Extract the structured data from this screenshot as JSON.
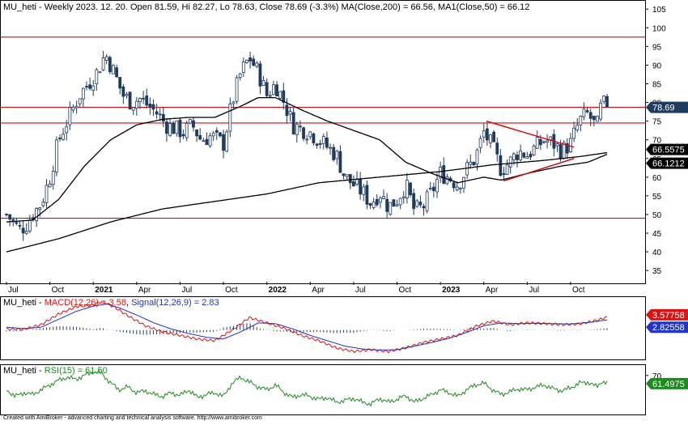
{
  "chart_data": [
    {
      "type": "candlestick",
      "title": "MU_heti - Weekly 2023. 12. 20. Open 81.59, Hi 82.27, Lo 78.63, Close 78.69 (-3.3%) MA(Close,200) = 66.56, MA1(Close,50) = 66.12",
      "title_parts": {
        "symbol": "MU_heti",
        "info": " - Weekly 2023. 12. 20. Open 81.59, Hi 82.27, Lo 78.63, Close 78.69 (-3.3%) ",
        "ma200_text": "MA(Close,200) = 66.56",
        "ma50_text": "MA1(Close,50) = 66.12"
      },
      "ylim": [
        32,
        107
      ],
      "y_ticks": [
        35,
        40,
        45,
        50,
        55,
        60,
        65,
        70,
        75,
        80,
        85,
        90,
        95,
        100,
        105
      ],
      "x_ticks": [
        {
          "label": "Jul",
          "t": 0.0,
          "bold": false
        },
        {
          "label": "Oct",
          "t": 0.25,
          "bold": false
        },
        {
          "label": "2021",
          "t": 0.5,
          "bold": true
        },
        {
          "label": "Apr",
          "t": 0.75,
          "bold": false
        },
        {
          "label": "Jul",
          "t": 1.0,
          "bold": false
        },
        {
          "label": "Oct",
          "t": 1.25,
          "bold": false
        },
        {
          "label": "2022",
          "t": 1.5,
          "bold": true
        },
        {
          "label": "Apr",
          "t": 1.75,
          "bold": false
        },
        {
          "label": "Jul",
          "t": 2.0,
          "bold": false
        },
        {
          "label": "Oct",
          "t": 2.25,
          "bold": false
        },
        {
          "label": "2023",
          "t": 2.5,
          "bold": true
        },
        {
          "label": "Apr",
          "t": 2.75,
          "bold": false
        },
        {
          "label": "Jul",
          "t": 3.0,
          "bold": false
        },
        {
          "label": "Oct",
          "t": 3.25,
          "bold": false
        }
      ],
      "last_t": 3.46,
      "horizontal_levels": [
        97.5,
        78.7,
        74.5,
        49.0
      ],
      "triangle_lines": [
        {
          "from": [
            2.765,
            75.0
          ],
          "to": [
            3.27,
            68.0
          ]
        },
        {
          "from": [
            2.865,
            59.0
          ],
          "to": [
            3.27,
            65.0
          ]
        }
      ],
      "price_anchors": [
        [
          0.0,
          50
        ],
        [
          0.04,
          48
        ],
        [
          0.07,
          46
        ],
        [
          0.11,
          47
        ],
        [
          0.15,
          50
        ],
        [
          0.2,
          53
        ],
        [
          0.25,
          60
        ],
        [
          0.3,
          70
        ],
        [
          0.36,
          76
        ],
        [
          0.42,
          82
        ],
        [
          0.47,
          85
        ],
        [
          0.52,
          88
        ],
        [
          0.57,
          93
        ],
        [
          0.62,
          88
        ],
        [
          0.67,
          82
        ],
        [
          0.72,
          80
        ],
        [
          0.77,
          81
        ],
        [
          0.82,
          79
        ],
        [
          0.87,
          77
        ],
        [
          0.92,
          74
        ],
        [
          0.97,
          73
        ],
        [
          1.02,
          72
        ],
        [
          1.07,
          74
        ],
        [
          1.12,
          70
        ],
        [
          1.18,
          71
        ],
        [
          1.25,
          69
        ],
        [
          1.3,
          80
        ],
        [
          1.35,
          88
        ],
        [
          1.4,
          92
        ],
        [
          1.45,
          88
        ],
        [
          1.5,
          82
        ],
        [
          1.55,
          85
        ],
        [
          1.6,
          80
        ],
        [
          1.65,
          74
        ],
        [
          1.7,
          73
        ],
        [
          1.75,
          72
        ],
        [
          1.8,
          70
        ],
        [
          1.85,
          68
        ],
        [
          1.9,
          66
        ],
        [
          1.95,
          60
        ],
        [
          2.0,
          58
        ],
        [
          2.05,
          56
        ],
        [
          2.1,
          53
        ],
        [
          2.15,
          56
        ],
        [
          2.2,
          52
        ],
        [
          2.25,
          54
        ],
        [
          2.3,
          58
        ],
        [
          2.35,
          51
        ],
        [
          2.4,
          52
        ],
        [
          2.45,
          56
        ],
        [
          2.5,
          61
        ],
        [
          2.55,
          60
        ],
        [
          2.6,
          58
        ],
        [
          2.65,
          62
        ],
        [
          2.7,
          65
        ],
        [
          2.75,
          72
        ],
        [
          2.8,
          68
        ],
        [
          2.85,
          62
        ],
        [
          2.9,
          64
        ],
        [
          2.95,
          67
        ],
        [
          3.0,
          66
        ],
        [
          3.05,
          68
        ],
        [
          3.1,
          70
        ],
        [
          3.15,
          69
        ],
        [
          3.2,
          67
        ],
        [
          3.25,
          69
        ],
        [
          3.3,
          75
        ],
        [
          3.35,
          77
        ],
        [
          3.4,
          73
        ],
        [
          3.43,
          80
        ],
        [
          3.46,
          78.69
        ]
      ],
      "series": [
        {
          "name": "MA(Close,200)",
          "value": 66.5575,
          "label": "66.5575",
          "anchors": [
            [
              0.0,
              40
            ],
            [
              0.3,
              43.5
            ],
            [
              0.6,
              48
            ],
            [
              0.9,
              51.5
            ],
            [
              1.2,
              53.5
            ],
            [
              1.5,
              55.5
            ],
            [
              1.8,
              58.5
            ],
            [
              2.1,
              59.8
            ],
            [
              2.5,
              61.5
            ],
            [
              2.8,
              63.3
            ],
            [
              3.1,
              64.5
            ],
            [
              3.3,
              65.5
            ],
            [
              3.46,
              66.56
            ]
          ]
        },
        {
          "name": "MA1(Close,50)",
          "value": 66.1212,
          "label": "66.1212",
          "anchors": [
            [
              0.0,
              48
            ],
            [
              0.15,
              48.5
            ],
            [
              0.3,
              54
            ],
            [
              0.45,
              63
            ],
            [
              0.6,
              70
            ],
            [
              0.75,
              74
            ],
            [
              0.9,
              75.5
            ],
            [
              1.05,
              76
            ],
            [
              1.2,
              76
            ],
            [
              1.35,
              79
            ],
            [
              1.45,
              81.3
            ],
            [
              1.55,
              81.3
            ],
            [
              1.7,
              78
            ],
            [
              1.85,
              75
            ],
            [
              2.0,
              72.5
            ],
            [
              2.15,
              70
            ],
            [
              2.3,
              64
            ],
            [
              2.45,
              61
            ],
            [
              2.6,
              58.5
            ],
            [
              2.75,
              60
            ],
            [
              2.85,
              59.2
            ],
            [
              3.0,
              61
            ],
            [
              3.2,
              63
            ],
            [
              3.35,
              64
            ],
            [
              3.46,
              66.12
            ]
          ]
        }
      ],
      "last_price": {
        "value": 78.69,
        "label": "78.69"
      }
    },
    {
      "type": "line",
      "title_parts": {
        "symbol": "MU_heti - ",
        "macd_text": "MACD(12,26) = 3.58",
        "sep": ", ",
        "signal_text": "Signal(12,26,9) = 2.83"
      },
      "ylim": [
        -8,
        9
      ],
      "series": [
        {
          "name": "MACD(12,26)",
          "value": 3.57758,
          "label": "3.57758",
          "anchors": [
            [
              0.0,
              0.3
            ],
            [
              0.1,
              0.2
            ],
            [
              0.2,
              1.5
            ],
            [
              0.3,
              4.5
            ],
            [
              0.4,
              6.5
            ],
            [
              0.5,
              7.0
            ],
            [
              0.55,
              8.0
            ],
            [
              0.62,
              6.5
            ],
            [
              0.7,
              4.0
            ],
            [
              0.8,
              1.2
            ],
            [
              0.9,
              -0.5
            ],
            [
              1.0,
              -1.5
            ],
            [
              1.1,
              -2.5
            ],
            [
              1.2,
              -3.0
            ],
            [
              1.3,
              0.0
            ],
            [
              1.4,
              3.5
            ],
            [
              1.5,
              2.0
            ],
            [
              1.6,
              0.5
            ],
            [
              1.7,
              -1.5
            ],
            [
              1.8,
              -3.0
            ],
            [
              1.9,
              -5.0
            ],
            [
              2.0,
              -6.0
            ],
            [
              2.1,
              -5.5
            ],
            [
              2.2,
              -6.0
            ],
            [
              2.3,
              -5.0
            ],
            [
              2.4,
              -3.5
            ],
            [
              2.5,
              -2.5
            ],
            [
              2.6,
              -1.5
            ],
            [
              2.7,
              1.0
            ],
            [
              2.8,
              2.5
            ],
            [
              2.9,
              1.5
            ],
            [
              3.0,
              2.0
            ],
            [
              3.1,
              1.8
            ],
            [
              3.2,
              1.5
            ],
            [
              3.3,
              1.7
            ],
            [
              3.4,
              2.7
            ],
            [
              3.46,
              3.58
            ]
          ]
        },
        {
          "name": "Signal(12,26,9)",
          "value": 2.82558,
          "label": "2.82558",
          "anchors": [
            [
              0.0,
              0.8
            ],
            [
              0.1,
              0.4
            ],
            [
              0.2,
              0.8
            ],
            [
              0.3,
              3.0
            ],
            [
              0.4,
              5.2
            ],
            [
              0.5,
              6.7
            ],
            [
              0.58,
              7.3
            ],
            [
              0.65,
              6.2
            ],
            [
              0.75,
              4.2
            ],
            [
              0.85,
              2.0
            ],
            [
              0.95,
              0.3
            ],
            [
              1.05,
              -1.0
            ],
            [
              1.15,
              -2.0
            ],
            [
              1.25,
              -2.5
            ],
            [
              1.35,
              -0.5
            ],
            [
              1.45,
              2.0
            ],
            [
              1.55,
              1.8
            ],
            [
              1.65,
              0.3
            ],
            [
              1.75,
              -1.5
            ],
            [
              1.85,
              -3.0
            ],
            [
              1.95,
              -4.5
            ],
            [
              2.05,
              -5.3
            ],
            [
              2.15,
              -5.6
            ],
            [
              2.25,
              -5.5
            ],
            [
              2.35,
              -4.5
            ],
            [
              2.45,
              -3.5
            ],
            [
              2.55,
              -2.3
            ],
            [
              2.65,
              -0.7
            ],
            [
              2.75,
              1.2
            ],
            [
              2.85,
              2.0
            ],
            [
              2.95,
              1.8
            ],
            [
              3.05,
              1.9
            ],
            [
              3.15,
              1.8
            ],
            [
              3.25,
              1.7
            ],
            [
              3.35,
              2.1
            ],
            [
              3.46,
              2.83
            ]
          ]
        }
      ]
    },
    {
      "type": "line",
      "title_parts": {
        "symbol": "MU_heti - ",
        "rsi_text": "RSI(15) = 61.50"
      },
      "ylim": [
        30,
        80
      ],
      "series": [
        {
          "name": "RSI(15)",
          "value": 61.4975,
          "label": "61.4975",
          "anchors": [
            [
              0.0,
              55
            ],
            [
              0.05,
              48
            ],
            [
              0.1,
              52
            ],
            [
              0.15,
              50
            ],
            [
              0.2,
              55
            ],
            [
              0.25,
              60
            ],
            [
              0.3,
              65
            ],
            [
              0.35,
              68
            ],
            [
              0.4,
              66
            ],
            [
              0.45,
              70
            ],
            [
              0.5,
              74
            ],
            [
              0.55,
              72
            ],
            [
              0.6,
              62
            ],
            [
              0.65,
              55
            ],
            [
              0.7,
              58
            ],
            [
              0.75,
              52
            ],
            [
              0.8,
              54
            ],
            [
              0.85,
              50
            ],
            [
              0.9,
              48
            ],
            [
              0.95,
              52
            ],
            [
              1.0,
              49
            ],
            [
              1.05,
              55
            ],
            [
              1.1,
              47
            ],
            [
              1.15,
              50
            ],
            [
              1.2,
              52
            ],
            [
              1.25,
              48
            ],
            [
              1.3,
              62
            ],
            [
              1.35,
              68
            ],
            [
              1.4,
              63
            ],
            [
              1.45,
              58
            ],
            [
              1.5,
              55
            ],
            [
              1.55,
              60
            ],
            [
              1.6,
              52
            ],
            [
              1.65,
              47
            ],
            [
              1.7,
              50
            ],
            [
              1.75,
              48
            ],
            [
              1.8,
              45
            ],
            [
              1.85,
              47
            ],
            [
              1.9,
              42
            ],
            [
              1.95,
              44
            ],
            [
              2.0,
              46
            ],
            [
              2.05,
              42
            ],
            [
              2.1,
              40
            ],
            [
              2.15,
              46
            ],
            [
              2.2,
              42
            ],
            [
              2.25,
              45
            ],
            [
              2.3,
              49
            ],
            [
              2.35,
              42
            ],
            [
              2.4,
              46
            ],
            [
              2.45,
              50
            ],
            [
              2.5,
              55
            ],
            [
              2.55,
              52
            ],
            [
              2.6,
              48
            ],
            [
              2.65,
              55
            ],
            [
              2.7,
              60
            ],
            [
              2.75,
              62
            ],
            [
              2.8,
              55
            ],
            [
              2.85,
              50
            ],
            [
              2.9,
              53
            ],
            [
              2.95,
              56
            ],
            [
              3.0,
              55
            ],
            [
              3.05,
              58
            ],
            [
              3.1,
              60
            ],
            [
              3.15,
              56
            ],
            [
              3.2,
              54
            ],
            [
              3.25,
              57
            ],
            [
              3.3,
              62
            ],
            [
              3.35,
              63
            ],
            [
              3.4,
              58
            ],
            [
              3.43,
              64
            ],
            [
              3.46,
              61.5
            ]
          ]
        }
      ]
    }
  ],
  "footer": "Created with AmiBroker - advanced charting and technical analysis software. http://www.amibroker.com",
  "colors": {
    "up_candle": "#ffffff",
    "down_candle": "#1f3b5e",
    "level_line": "#cc1111",
    "ma200": "#000000",
    "ma50": "#000000",
    "macd": "#dd1111",
    "signal": "#2233bb",
    "histogram": "#2a3f5a",
    "rsi": "#1f8a1f",
    "rsi_label_bg": "#1f8a1f",
    "macd_label_bg": "#dd1111",
    "signal_label_bg": "#2233cc",
    "ma_label_bg": "#000000",
    "price_label_bg": "#1f3b5e"
  }
}
